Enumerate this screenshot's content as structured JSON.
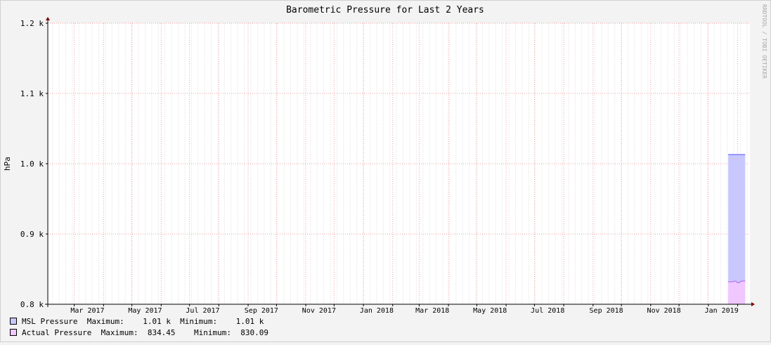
{
  "chart_data": {
    "type": "area",
    "title": "Barometric Pressure for Last 2 Years",
    "ylabel": "hPa",
    "watermark": "RRDTOOL / TOBI OETIKER",
    "ylim": [
      800,
      1200
    ],
    "y_ticks": [
      {
        "value": 800,
        "label": "0.8 k"
      },
      {
        "value": 900,
        "label": "0.9 k"
      },
      {
        "value": 1000,
        "label": "1.0 k"
      },
      {
        "value": 1100,
        "label": "1.1 k"
      },
      {
        "value": 1200,
        "label": "1.2 k"
      }
    ],
    "xlim": [
      "2017-02-01",
      "2019-02-14"
    ],
    "x_ticks": [
      {
        "date": "2017-03-15",
        "label": "Mar 2017"
      },
      {
        "date": "2017-05-15",
        "label": "May 2017"
      },
      {
        "date": "2017-07-15",
        "label": "Jul 2017"
      },
      {
        "date": "2017-09-15",
        "label": "Sep 2017"
      },
      {
        "date": "2017-11-15",
        "label": "Nov 2017"
      },
      {
        "date": "2018-01-15",
        "label": "Jan 2018"
      },
      {
        "date": "2018-03-15",
        "label": "Mar 2018"
      },
      {
        "date": "2018-05-15",
        "label": "May 2018"
      },
      {
        "date": "2018-07-15",
        "label": "Jul 2018"
      },
      {
        "date": "2018-09-15",
        "label": "Sep 2018"
      },
      {
        "date": "2018-11-15",
        "label": "Nov 2018"
      },
      {
        "date": "2019-01-15",
        "label": "Jan 2019"
      }
    ],
    "grid": true,
    "legend_placement": "bottom-left",
    "series": [
      {
        "name": "MSL Pressure",
        "color": "#c8c8ff",
        "line_color": "#8080ff",
        "legend_stats": "Maximum:    1.01 k  Minimum:    1.01 k",
        "x": [
          "2019-01-22",
          "2019-01-26",
          "2019-01-30",
          "2019-02-03",
          "2019-02-07",
          "2019-02-09"
        ],
        "values": [
          1013,
          1013,
          1013,
          1013,
          1013,
          1013
        ]
      },
      {
        "name": "Actual Pressure",
        "color": "#f0c8ff",
        "line_color": "#c080f0",
        "legend_stats": "Maximum:  834.45    Minimum:  830.09",
        "x": [
          "2019-01-22",
          "2019-01-26",
          "2019-01-30",
          "2019-02-01",
          "2019-02-03",
          "2019-02-05",
          "2019-02-09"
        ],
        "values": [
          832,
          832,
          833,
          830.5,
          831,
          833,
          833
        ]
      }
    ]
  }
}
